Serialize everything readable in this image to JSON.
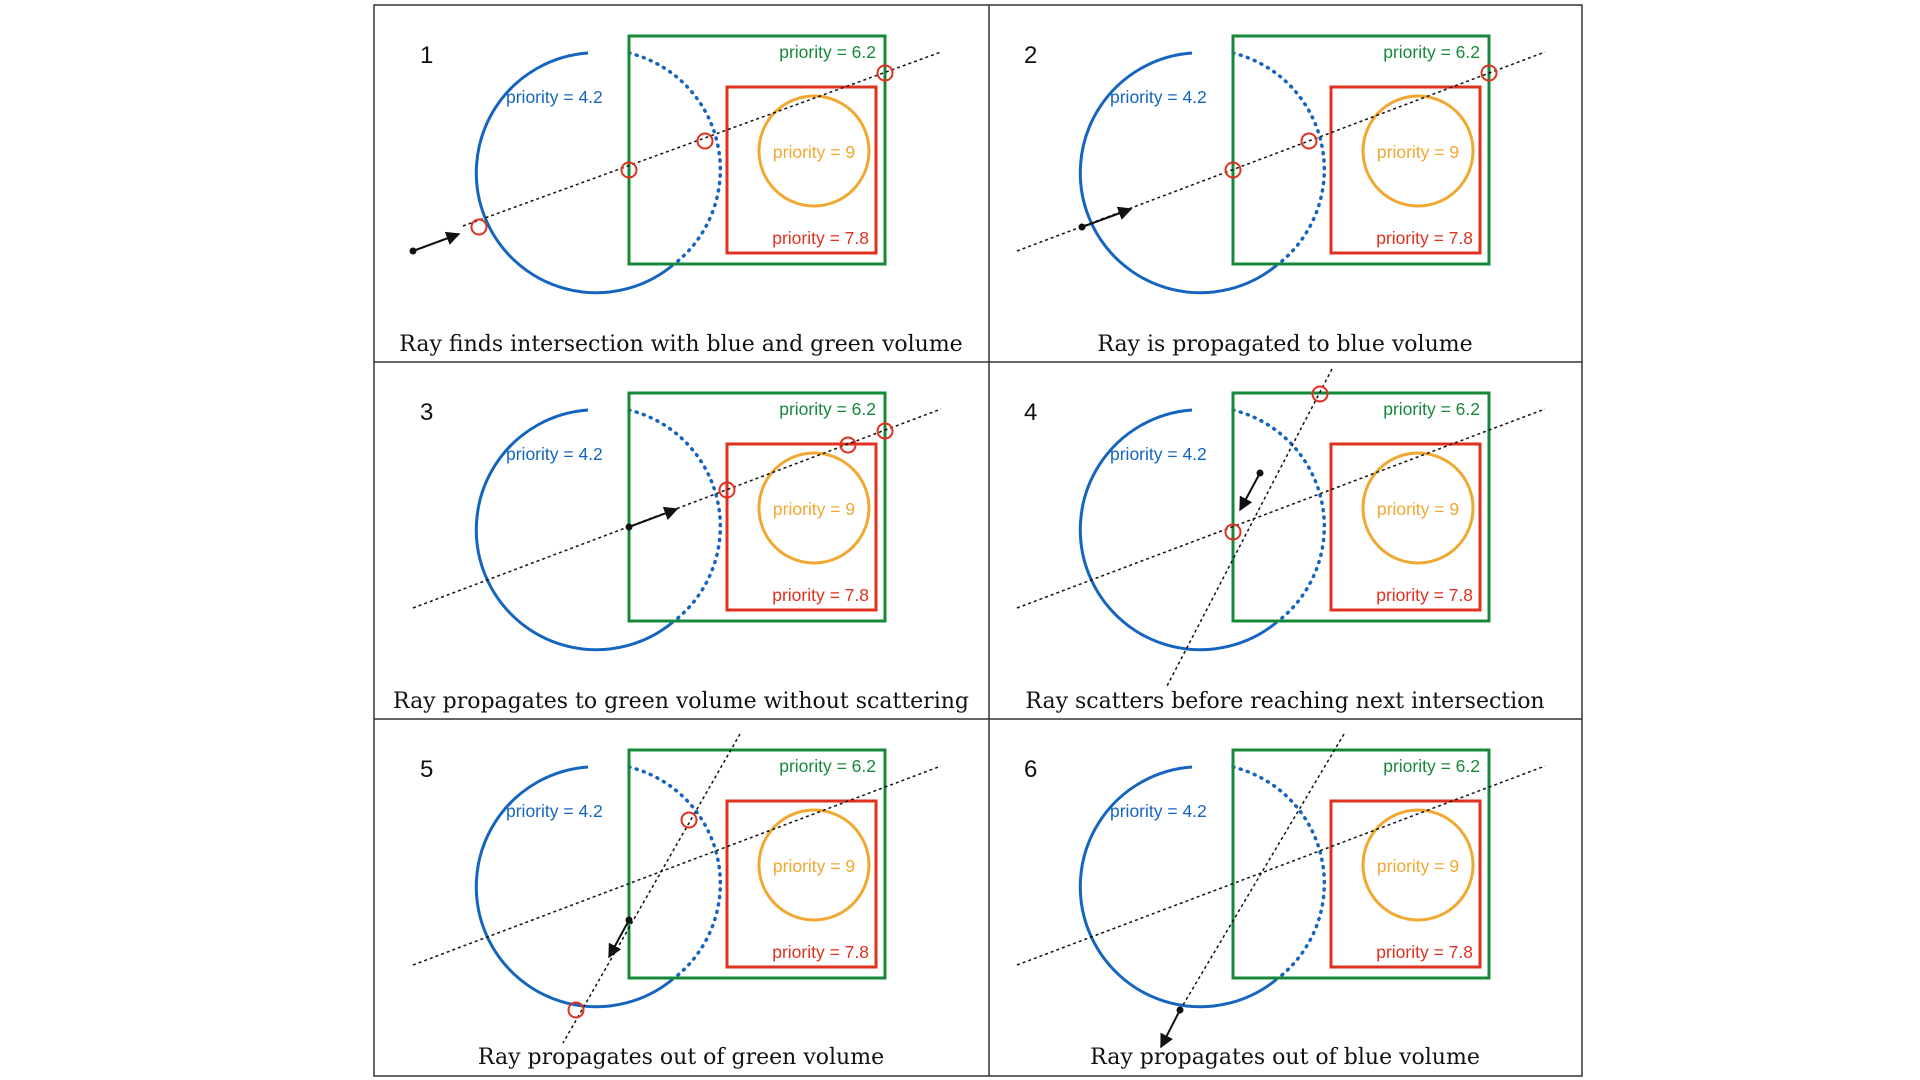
{
  "colors": {
    "blue": "#1565c0",
    "green": "#16883a",
    "red": "#e0301e",
    "orange": "#f0a830",
    "ink": "#111111",
    "frame": "#333333"
  },
  "labels": {
    "blue": "priority = 4.2",
    "green": "priority = 6.2",
    "red": "priority = 7.8",
    "orange": "priority = 9"
  },
  "panels": [
    {
      "number": "1",
      "caption": "Ray finds intersection with blue and green volume"
    },
    {
      "number": "2",
      "caption": "Ray is propagated to blue volume"
    },
    {
      "number": "3",
      "caption": "Ray propagates to green volume without scattering"
    },
    {
      "number": "4",
      "caption": "Ray scatters before reaching next intersection"
    },
    {
      "number": "5",
      "caption": "Ray propagates out of green volume"
    },
    {
      "number": "6",
      "caption": "Ray propagates out of blue volume"
    }
  ]
}
